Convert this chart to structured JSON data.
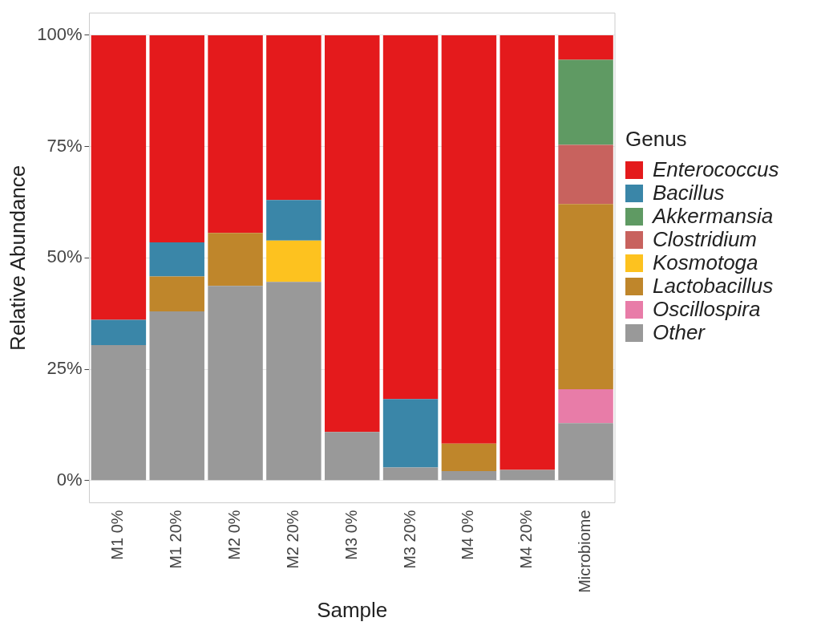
{
  "chart_data": {
    "type": "bar",
    "stacked": true,
    "xlabel": "Sample",
    "ylabel": "Relative Abundance",
    "legend_title": "Genus",
    "legend": "right",
    "grid": "y",
    "categories": [
      "M1 0%",
      "M1 20%",
      "M2 0%",
      "M2 20%",
      "M3 0%",
      "M3 20%",
      "M4 0%",
      "M4 20%",
      "Microbiome"
    ],
    "ylim": [
      -5,
      105
    ],
    "yticks": [
      {
        "value": 0,
        "label": "0%"
      },
      {
        "value": 25,
        "label": "25%"
      },
      {
        "value": 50,
        "label": "50%"
      },
      {
        "value": 75,
        "label": "75%"
      },
      {
        "value": 100,
        "label": "100%"
      }
    ],
    "series": [
      {
        "name": "Other",
        "color": "#999999",
        "values": [
          30.4,
          38,
          43.7,
          44.6,
          10.9,
          2.9,
          2.1,
          2.4,
          12.9
        ]
      },
      {
        "name": "Oscillospira",
        "color": "#e87ca8",
        "values": [
          null,
          null,
          null,
          null,
          null,
          null,
          null,
          null,
          7.6
        ]
      },
      {
        "name": "Lactobacillus",
        "color": "#bf862b",
        "values": [
          null,
          7.8,
          11.9,
          null,
          null,
          null,
          6.2,
          null,
          41.6
        ]
      },
      {
        "name": "Kosmotoga",
        "color": "#fdc21f",
        "values": [
          null,
          null,
          null,
          9.3,
          null,
          null,
          null,
          null,
          null
        ]
      },
      {
        "name": "Clostridium",
        "color": "#c8625e",
        "values": [
          null,
          null,
          null,
          null,
          null,
          null,
          null,
          null,
          13.3
        ]
      },
      {
        "name": "Akkermansia",
        "color": "#5f9a63",
        "values": [
          null,
          null,
          null,
          null,
          null,
          null,
          null,
          null,
          19.1
        ]
      },
      {
        "name": "Bacillus",
        "color": "#3a86a8",
        "values": [
          5.7,
          7.7,
          null,
          9.1,
          null,
          15.4,
          null,
          null,
          null
        ]
      },
      {
        "name": "Enterococcus",
        "color": "#e41a1c",
        "values": [
          63.9,
          46.5,
          44.4,
          37,
          89.1,
          81.7,
          91.7,
          97.6,
          5.5
        ]
      }
    ]
  }
}
